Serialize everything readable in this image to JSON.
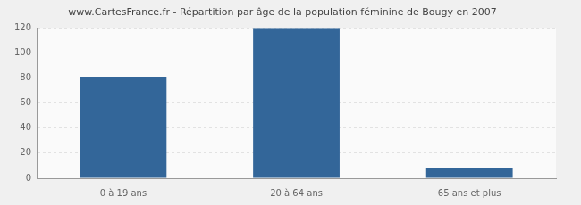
{
  "chart_data": {
    "type": "bar",
    "title": "www.CartesFrance.fr - Répartition par âge de la population féminine de Bougy en 2007",
    "categories": [
      "0 à 19 ans",
      "20 à 64 ans",
      "65 ans et plus"
    ],
    "values": [
      81,
      120,
      8
    ],
    "color": "#336699",
    "ylim": [
      0,
      120
    ],
    "yticks": [
      0,
      20,
      40,
      60,
      80,
      100,
      120
    ],
    "grid": true
  }
}
